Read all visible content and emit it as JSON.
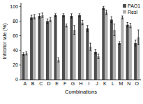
{
  "chart_data": {
    "type": "bar",
    "x_label": "Combinations",
    "y_label": "Inhibitor rate (%)",
    "categories": [
      "A",
      "B",
      "C",
      "D",
      "E",
      "F",
      "G",
      "H",
      "I",
      "J",
      "K",
      "L",
      "M",
      "N",
      "O"
    ],
    "series": [
      {
        "name": "PAO1",
        "color": "#4d4d4d",
        "values": [
          35,
          85,
          87,
          80,
          88,
          88,
          87,
          88,
          70,
          38,
          98,
          82,
          50,
          75,
          50
        ],
        "errors": [
          2,
          3,
          3,
          3,
          2,
          2,
          3,
          2,
          4,
          3,
          2,
          4,
          2,
          3,
          4
        ]
      },
      {
        "name": "Resl",
        "color": "#b0b0b0",
        "values": [
          36,
          86,
          88,
          82,
          27,
          74,
          68,
          78,
          45,
          32,
          92,
          68,
          85,
          74,
          58
        ],
        "errors": [
          2,
          3,
          3,
          3,
          3,
          2,
          6,
          3,
          5,
          3,
          3,
          8,
          2,
          3,
          10
        ]
      }
    ],
    "ylim": [
      0,
      105
    ],
    "yticks": [
      0,
      20,
      40,
      60,
      80,
      100
    ],
    "legend": "top-right"
  }
}
